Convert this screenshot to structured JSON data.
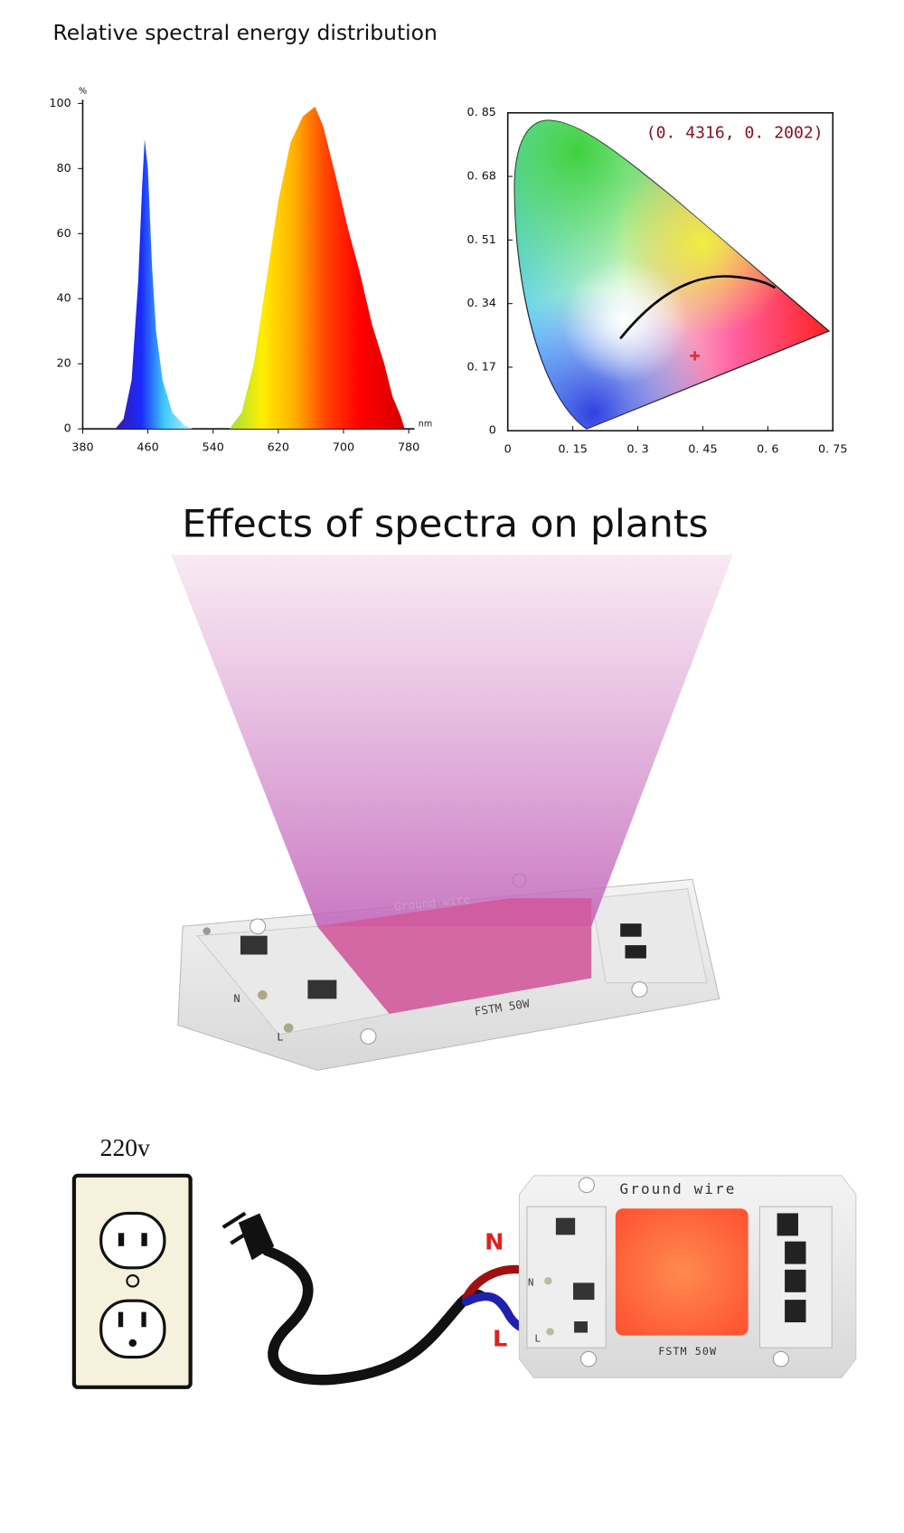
{
  "title": "Relative spectral energy distribution",
  "chart_data": [
    {
      "type": "area",
      "x_label": "nm",
      "y_label": "%",
      "x": [
        420,
        430,
        440,
        448,
        453,
        456,
        460,
        465,
        470,
        478,
        490,
        505,
        515,
        560,
        575,
        590,
        605,
        620,
        635,
        650,
        665,
        675,
        690,
        705,
        720,
        735,
        750,
        760,
        770,
        775
      ],
      "values": [
        0,
        3,
        15,
        45,
        75,
        89,
        80,
        50,
        30,
        15,
        5,
        1,
        0,
        0,
        5,
        20,
        45,
        70,
        88,
        96,
        99,
        93,
        78,
        62,
        48,
        32,
        20,
        10,
        4,
        0
      ],
      "xlim": [
        380,
        780
      ],
      "xticks": [
        380,
        460,
        540,
        620,
        700,
        780
      ],
      "ylim": [
        0,
        100
      ],
      "yticks": [
        0,
        20,
        40,
        60,
        80,
        100
      ]
    },
    {
      "type": "scatter",
      "annotation": "(0. 4316, 0. 2002)",
      "x": [
        0.4316
      ],
      "values": [
        0.2002
      ],
      "color": "#e0303a",
      "xlim": [
        0,
        0.75
      ],
      "xticks": [
        0,
        {
          "value": 0.15,
          "label": "0. 15"
        },
        {
          "value": 0.3,
          "label": "0. 3"
        },
        {
          "value": 0.45,
          "label": "0. 45"
        },
        {
          "value": 0.6,
          "label": "0. 6"
        },
        {
          "value": 0.75,
          "label": "0. 75"
        }
      ],
      "ylim": [
        0,
        0.85
      ],
      "yticks": [
        0,
        {
          "value": 0.17,
          "label": "0. 17"
        },
        {
          "value": 0.34,
          "label": "0. 34"
        },
        {
          "value": 0.51,
          "label": "0. 51"
        },
        {
          "value": 0.68,
          "label": "0. 68"
        },
        {
          "value": 0.85,
          "label": "0. 85"
        }
      ]
    }
  ],
  "section_title": "Effects of spectra on plants",
  "top_chip": {
    "ground_label": "Ground wire",
    "model": "FSTM 50W",
    "n_label": "N",
    "l_label": "L"
  },
  "wiring": {
    "voltage": "220v",
    "n_wire": "N",
    "l_wire": "L",
    "chip": {
      "ground_label": "Ground wire",
      "model": "FSTM 50W",
      "n_label": "N",
      "l_label": "L"
    }
  }
}
